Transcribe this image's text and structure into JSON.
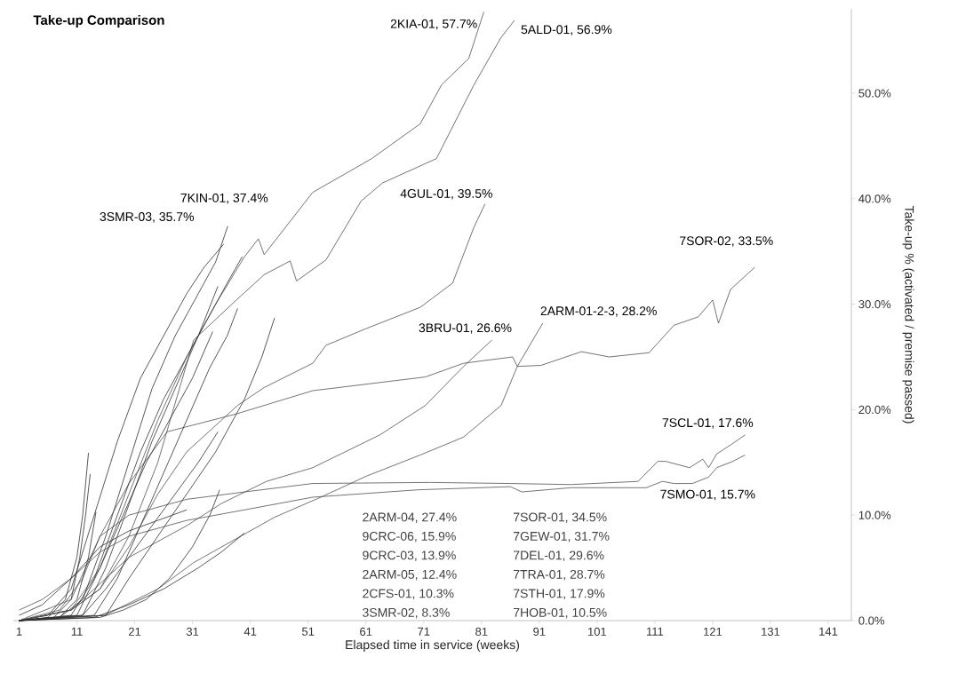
{
  "chart_data": {
    "type": "line",
    "title": "Take-up Comparison",
    "xlabel": "Elapsed time in service (weeks)",
    "ylabel": "Take-up % (activated / premise passed)",
    "xlim": [
      0,
      145
    ],
    "xticks": [
      1,
      11,
      21,
      31,
      41,
      51,
      61,
      71,
      81,
      91,
      101,
      111,
      121,
      131,
      141
    ],
    "ylim": [
      0,
      58
    ],
    "yticks": [
      {
        "value": 0,
        "label": "0.0%"
      },
      {
        "value": 10,
        "label": "10.0%"
      },
      {
        "value": 20,
        "label": "20.0%"
      },
      {
        "value": 30,
        "label": "30.0%"
      },
      {
        "value": 40,
        "label": "40.0%"
      },
      {
        "value": 50,
        "label": "50.0%"
      }
    ],
    "series": [
      {
        "name": "2KIA-01, 57.7%",
        "color": "#505050",
        "x": [
          1,
          10,
          15,
          20,
          25,
          30,
          35,
          40,
          42.4,
          43.4,
          51.8,
          62,
          70.4,
          74.1,
          78.8,
          81.4
        ],
        "values": [
          0,
          1,
          5,
          12,
          19,
          25,
          30,
          34.5,
          36.2,
          34.7,
          40.6,
          43.8,
          47.1,
          50.8,
          53.3,
          57.7
        ]
      },
      {
        "name": "5ALD-01, 56.9%",
        "color": "#505050",
        "x": [
          1,
          10,
          15,
          20,
          25,
          31.2,
          37.8,
          43.4,
          47.9,
          49,
          54.1,
          60.2,
          63.9,
          73.2,
          79.7,
          84.4,
          86.7
        ],
        "values": [
          0,
          1,
          3,
          8,
          15,
          26.6,
          30,
          32.8,
          34.1,
          32.2,
          34.2,
          39.8,
          41.5,
          43.8,
          50.8,
          55.3,
          56.9
        ]
      },
      {
        "name": "7KIN-01, 37.4%",
        "color": "#303030",
        "x": [
          1,
          8,
          12,
          16,
          20,
          24,
          28,
          32,
          35,
          37.1
        ],
        "values": [
          0,
          0.3,
          2,
          8,
          15,
          22,
          27,
          31,
          34,
          37.4
        ]
      },
      {
        "name": "3SMR-03, 35.7%",
        "color": "#303030",
        "x": [
          1,
          6,
          10,
          14,
          18,
          22,
          26,
          30,
          33,
          36.4
        ],
        "values": [
          0,
          0.5,
          3,
          10,
          17,
          23,
          27,
          31,
          33.5,
          35.7
        ]
      },
      {
        "name": "4GUL-01, 39.5%",
        "color": "#505050",
        "x": [
          1,
          10,
          15,
          20,
          25,
          30,
          38.8,
          43.4,
          51.8,
          54.1,
          61.1,
          70.4,
          76,
          79.7,
          81.6
        ],
        "values": [
          0,
          1,
          3,
          7,
          12,
          16,
          20.4,
          22.1,
          24.4,
          26.1,
          27.7,
          29.7,
          32,
          37.3,
          39.5
        ]
      },
      {
        "name": "7SOR-02, 33.5%",
        "color": "#505050",
        "x": [
          1,
          10,
          15,
          20,
          26.6,
          38.6,
          51.8,
          71.3,
          77.9,
          86.4,
          87.2,
          91.3,
          98.3,
          103.1,
          110,
          114.3,
          118.5,
          121,
          122,
          124.1,
          128.3
        ],
        "values": [
          0,
          2,
          8,
          13,
          17.9,
          19.6,
          21.8,
          23.1,
          24.4,
          25,
          24.1,
          24.2,
          25.5,
          25,
          25.4,
          28,
          28.8,
          30.4,
          28.2,
          31.4,
          33.5
        ]
      },
      {
        "name": "2ARM-01-2-3, 28.2%",
        "color": "#505050",
        "x": [
          1,
          15.8,
          25,
          31.2,
          45.2,
          53.2,
          61.1,
          70.4,
          77.9,
          84.4,
          87.2,
          91.6
        ],
        "values": [
          0,
          0.5,
          3,
          5.5,
          9.8,
          11.7,
          13.7,
          15.7,
          17.4,
          20.4,
          24.1,
          28.2
        ]
      },
      {
        "name": "3BRU-01, 26.6%",
        "color": "#505050",
        "x": [
          1,
          10,
          20,
          30,
          36,
          43.8,
          51.8,
          63.4,
          71.3,
          77.9,
          82.8
        ],
        "values": [
          0,
          1,
          6,
          9,
          11.1,
          13.2,
          14.5,
          17.6,
          20.4,
          24.1,
          26.6
        ]
      },
      {
        "name": "7SCL-01, 17.6%",
        "color": "#505050",
        "x": [
          1,
          8,
          12,
          15,
          20,
          30,
          40,
          51.8,
          72,
          86,
          96.5,
          108.1,
          111.5,
          112.9,
          117,
          119.3,
          120.3,
          121.7,
          124.5,
          126.6
        ],
        "values": [
          0,
          1,
          4,
          8,
          10,
          11.5,
          12.2,
          13,
          13.1,
          13,
          12.9,
          13.2,
          15.1,
          15.1,
          14.5,
          15.3,
          14.5,
          15.8,
          16.8,
          17.6
        ]
      },
      {
        "name": "7SMO-01, 15.7%",
        "color": "#505050",
        "x": [
          1,
          5,
          10,
          15,
          20,
          30,
          40,
          51.8,
          70,
          86,
          88,
          96.5,
          109.5,
          112.3,
          114.3,
          117.5,
          120.3,
          121.7,
          124.5,
          126.6
        ],
        "values": [
          1,
          2,
          4,
          6.5,
          8,
          9.5,
          10.5,
          11.7,
          12.4,
          12.7,
          12.2,
          12.6,
          12.6,
          13.2,
          13,
          13,
          13.6,
          14.5,
          15.1,
          15.7
        ]
      },
      {
        "color": "#303030",
        "x": [
          1,
          10,
          14,
          18,
          22,
          26,
          30,
          34,
          37,
          39.6
        ],
        "values": [
          0,
          0.5,
          4,
          10,
          16,
          21,
          25,
          29,
          32,
          34.5
        ]
      },
      {
        "color": "#303030",
        "x": [
          1,
          12,
          16,
          20,
          24,
          28,
          32,
          35.4
        ],
        "values": [
          0,
          0.5,
          5,
          11,
          17,
          22,
          27,
          31.7
        ]
      },
      {
        "color": "#303030",
        "x": [
          1,
          14,
          18,
          22,
          26,
          30,
          34,
          37,
          38.8
        ],
        "values": [
          0,
          0.5,
          4,
          9,
          14,
          19,
          24,
          27,
          29.6
        ]
      },
      {
        "color": "#303030",
        "x": [
          1,
          11,
          15,
          19,
          23,
          27,
          31,
          34.5
        ],
        "values": [
          0,
          0.5,
          5,
          10,
          15,
          19,
          23,
          27.4
        ]
      },
      {
        "color": "#303030",
        "x": [
          1,
          16,
          20,
          25,
          30,
          35,
          40,
          43,
          45.2
        ],
        "values": [
          0,
          0.5,
          4,
          8,
          12,
          16,
          21,
          25,
          28.7
        ]
      },
      {
        "color": "#303030",
        "x": [
          1,
          12,
          16,
          20,
          24,
          28,
          32,
          35.4
        ],
        "values": [
          0,
          0.5,
          3,
          6,
          9,
          12,
          15,
          17.9
        ]
      },
      {
        "color": "#303030",
        "x": [
          1,
          6,
          9,
          11,
          12,
          13
        ],
        "values": [
          0,
          0.3,
          2,
          6,
          10,
          15.9
        ]
      },
      {
        "color": "#303030",
        "x": [
          1,
          7,
          10,
          11.5,
          12.5,
          13.3
        ],
        "values": [
          0,
          0.3,
          2,
          6,
          10,
          13.9
        ]
      },
      {
        "color": "#303030",
        "x": [
          1,
          15,
          19,
          23,
          27,
          31,
          34,
          35.7
        ],
        "values": [
          0,
          0.3,
          1,
          2,
          4,
          7,
          10,
          12.4
        ]
      },
      {
        "color": "#303030",
        "x": [
          1,
          8,
          11,
          13,
          14.3
        ],
        "values": [
          0,
          0.3,
          2,
          6,
          10.3
        ]
      },
      {
        "color": "#303030",
        "x": [
          1,
          5,
          10,
          15,
          20,
          25,
          30
        ],
        "values": [
          0.5,
          1.5,
          4,
          7,
          8.5,
          9.5,
          10.5
        ]
      },
      {
        "color": "#303030",
        "x": [
          1,
          14,
          20,
          26,
          32,
          36,
          40
        ],
        "values": [
          0,
          0.3,
          1.5,
          3,
          5,
          6.5,
          8.3
        ]
      }
    ],
    "annotations": [
      "2ARM-04, 27.4%",
      "9CRC-06, 15.9%",
      "9CRC-03, 13.9%",
      "2ARM-05, 12.4%",
      "2CFS-01, 10.3%",
      "3SMR-02, 8.3%",
      "7SOR-01, 34.5%",
      "7GEW-01, 31.7%",
      "7DEL-01, 29.6%",
      "7TRA-01, 28.7%",
      "7STH-01, 17.9%",
      "7HOB-01, 10.5%"
    ]
  }
}
